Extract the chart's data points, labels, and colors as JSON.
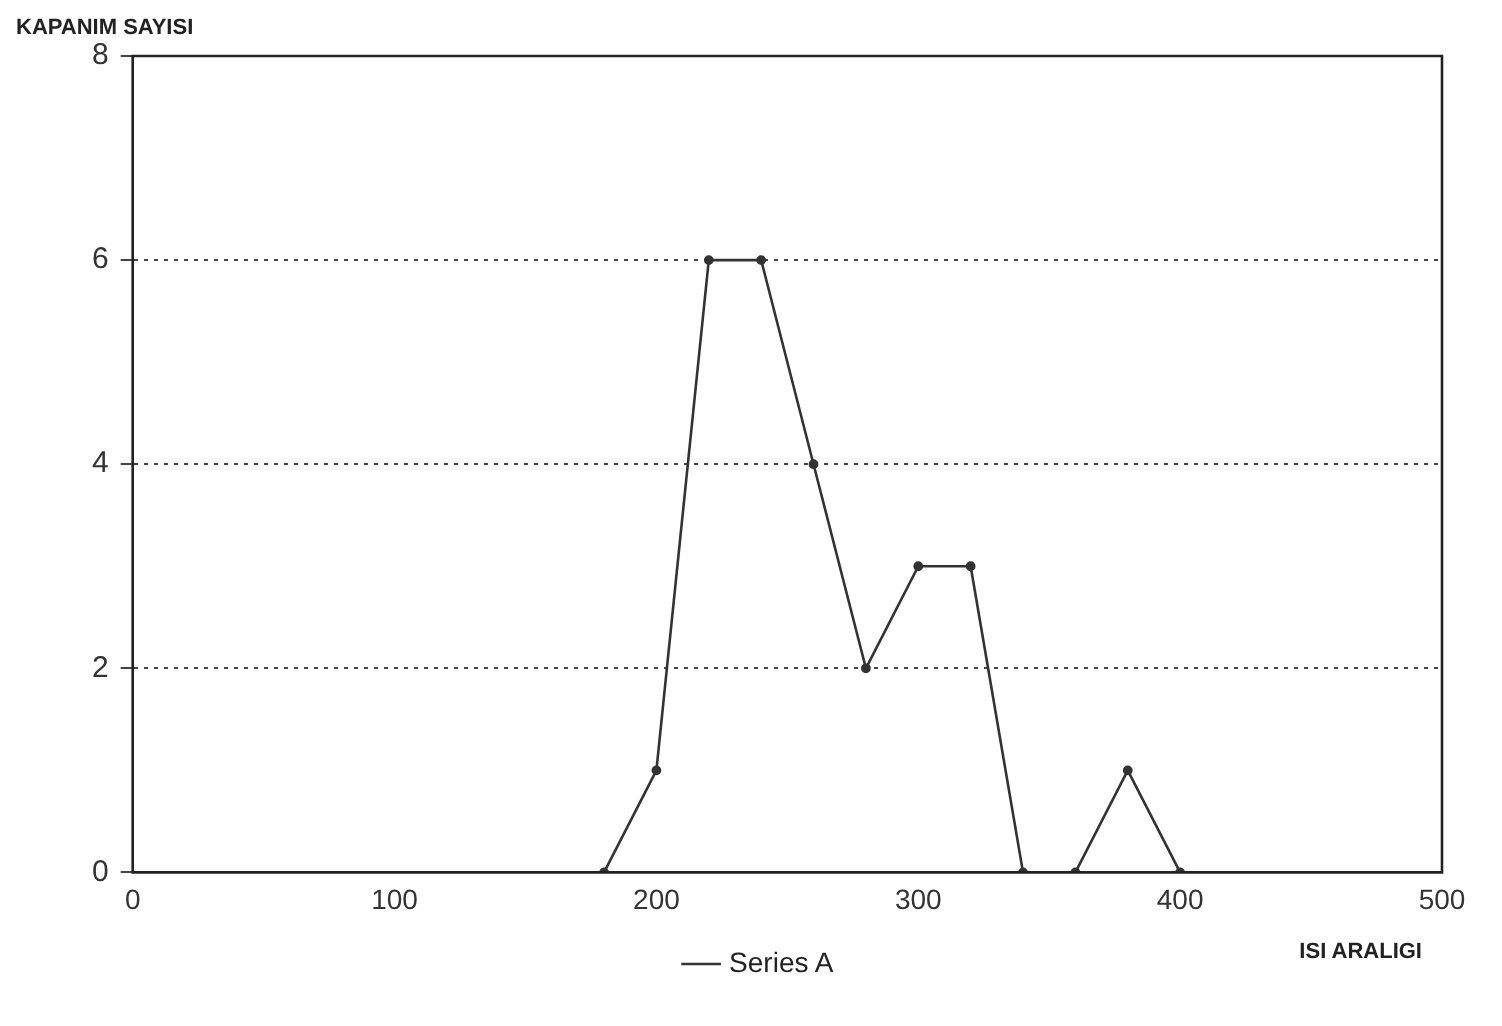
{
  "chart_data": {
    "type": "line",
    "xlabel": "ISI ARALIGI",
    "ylabel": "KAPANIM SAYISI",
    "x": [
      180,
      200,
      220,
      240,
      260,
      280,
      300,
      320,
      340,
      360,
      380,
      400
    ],
    "series": [
      {
        "name": "Series A",
        "color": "#333333",
        "values": [
          0,
          1,
          6,
          6,
          4,
          2,
          3,
          3,
          0,
          0,
          1,
          0
        ]
      }
    ],
    "xlim": [
      0,
      500
    ],
    "xticks": [
      0,
      100,
      200,
      300,
      400,
      500
    ],
    "ylim": [
      0,
      8
    ],
    "yticks": [
      0,
      2,
      4,
      6,
      8
    ],
    "grid": "y",
    "legend": "bottom",
    "marker": "circle",
    "line_style": "solid"
  }
}
